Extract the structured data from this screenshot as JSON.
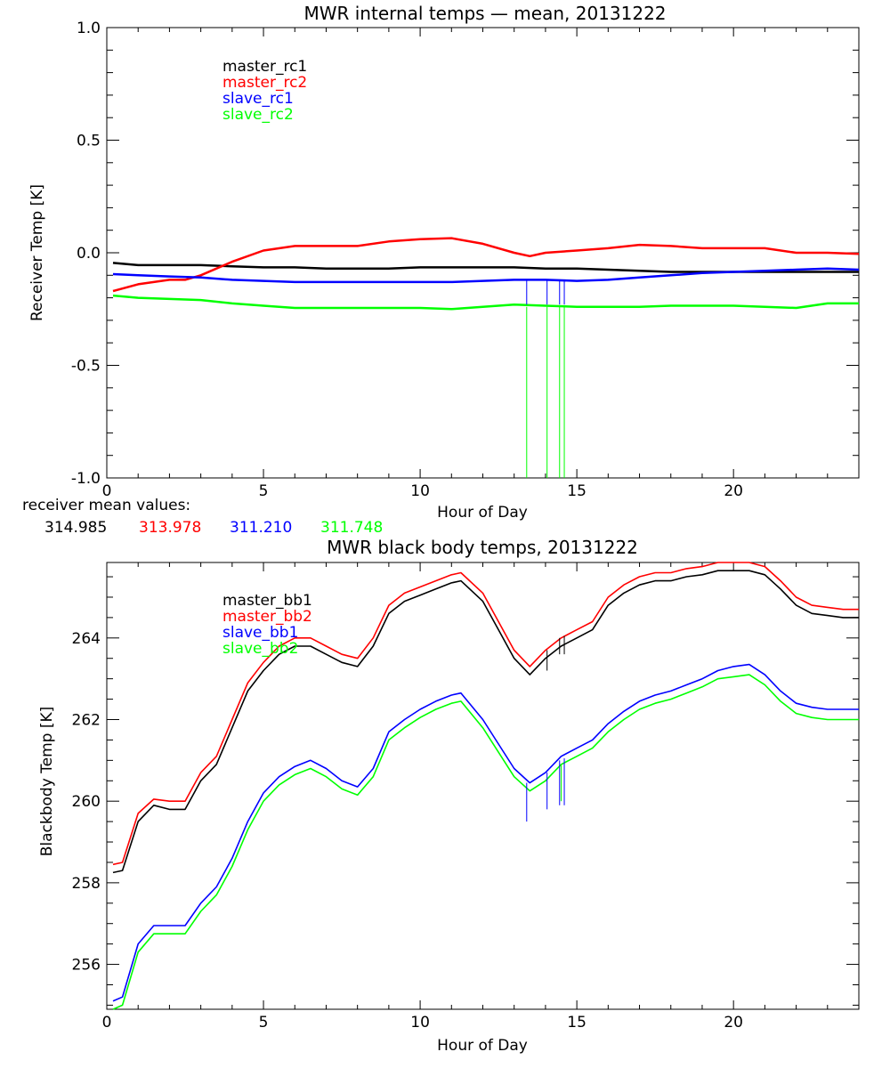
{
  "chart_data": [
    {
      "type": "line",
      "title": "MWR internal temps — mean, 20131222",
      "xlabel": "Hour of Day",
      "ylabel": "Receiver Temp [K]",
      "xlim": [
        0,
        24
      ],
      "ylim": [
        -1.0,
        1.0
      ],
      "xticks": [
        "0",
        "5",
        "10",
        "15",
        "20"
      ],
      "xtick_values": [
        0,
        5,
        10,
        15,
        20
      ],
      "yticks": [
        "1.0",
        "0.5",
        "0.0",
        "-0.5",
        "-1.0"
      ],
      "ytick_values": [
        1.0,
        0.5,
        0.0,
        -0.5,
        -1.0
      ],
      "legend_position": "top-left",
      "series": [
        {
          "name": "master_rc1",
          "color": "#000000",
          "x": [
            0.2,
            1,
            2,
            3,
            4,
            5,
            6,
            7,
            8,
            9,
            10,
            11,
            12,
            13,
            14,
            15,
            16,
            17,
            18,
            19,
            20,
            21,
            22,
            23,
            24
          ],
          "y": [
            -0.045,
            -0.055,
            -0.055,
            -0.055,
            -0.06,
            -0.065,
            -0.065,
            -0.07,
            -0.07,
            -0.07,
            -0.065,
            -0.065,
            -0.065,
            -0.065,
            -0.07,
            -0.07,
            -0.075,
            -0.08,
            -0.085,
            -0.085,
            -0.085,
            -0.085,
            -0.085,
            -0.085,
            -0.085
          ]
        },
        {
          "name": "master_rc2",
          "color": "#ff0000",
          "x": [
            0.2,
            1,
            2,
            2.5,
            3,
            4,
            5,
            6,
            7,
            8,
            9,
            10,
            11,
            12,
            13,
            13.5,
            14,
            15,
            16,
            17,
            18,
            19,
            20,
            21,
            22,
            23,
            24
          ],
          "y": [
            -0.17,
            -0.14,
            -0.12,
            -0.12,
            -0.1,
            -0.04,
            0.01,
            0.03,
            0.03,
            0.03,
            0.05,
            0.06,
            0.065,
            0.04,
            0.0,
            -0.015,
            0.0,
            0.01,
            0.02,
            0.035,
            0.03,
            0.02,
            0.02,
            0.02,
            0.0,
            0.0,
            -0.005
          ]
        },
        {
          "name": "slave_rc1",
          "color": "#0000ff",
          "x": [
            0.2,
            1,
            2,
            3,
            4,
            5,
            6,
            7,
            8,
            9,
            10,
            11,
            12,
            13,
            14,
            15,
            16,
            17,
            18,
            19,
            20,
            21,
            22,
            23,
            24
          ],
          "y": [
            -0.095,
            -0.1,
            -0.105,
            -0.11,
            -0.12,
            -0.125,
            -0.13,
            -0.13,
            -0.13,
            -0.13,
            -0.13,
            -0.13,
            -0.125,
            -0.12,
            -0.12,
            -0.125,
            -0.12,
            -0.11,
            -0.1,
            -0.09,
            -0.085,
            -0.08,
            -0.075,
            -0.07,
            -0.075
          ]
        },
        {
          "name": "slave_rc2",
          "color": "#00ff00",
          "x": [
            0.2,
            1,
            2,
            3,
            4,
            5,
            6,
            7,
            8,
            9,
            10,
            11,
            12,
            13,
            14,
            15,
            16,
            17,
            18,
            19,
            20,
            21,
            22,
            23,
            24
          ],
          "y": [
            -0.19,
            -0.2,
            -0.205,
            -0.21,
            -0.225,
            -0.235,
            -0.245,
            -0.245,
            -0.245,
            -0.245,
            -0.245,
            -0.25,
            -0.24,
            -0.23,
            -0.235,
            -0.24,
            -0.24,
            -0.24,
            -0.235,
            -0.235,
            -0.235,
            -0.24,
            -0.245,
            -0.225,
            -0.225
          ]
        }
      ],
      "spikes": [
        {
          "color": "#00ff00",
          "x": 13.4,
          "y_from": -0.24,
          "y_to": -1.0
        },
        {
          "color": "#00ff00",
          "x": 14.05,
          "y_from": -0.24,
          "y_to": -1.0
        },
        {
          "color": "#00ff00",
          "x": 14.45,
          "y_from": -0.24,
          "y_to": -1.0
        },
        {
          "color": "#00ff00",
          "x": 14.6,
          "y_from": -0.24,
          "y_to": -1.0
        },
        {
          "color": "#0000ff",
          "x": 13.4,
          "y_from": -0.12,
          "y_to": -0.23
        },
        {
          "color": "#0000ff",
          "x": 14.05,
          "y_from": -0.12,
          "y_to": -0.23
        },
        {
          "color": "#0000ff",
          "x": 14.45,
          "y_from": -0.12,
          "y_to": -0.23
        },
        {
          "color": "#0000ff",
          "x": 14.6,
          "y_from": -0.12,
          "y_to": -0.23
        }
      ]
    },
    {
      "type": "line",
      "title": "MWR black body temps, 20131222",
      "xlabel": "Hour of Day",
      "ylabel": "Blackbody Temp [K]",
      "xlim": [
        0,
        24
      ],
      "ylim": [
        254.9,
        265.85
      ],
      "xticks": [
        "0",
        "5",
        "10",
        "15",
        "20"
      ],
      "xtick_values": [
        0,
        5,
        10,
        15,
        20
      ],
      "yticks": [
        "264",
        "262",
        "260",
        "258",
        "256"
      ],
      "ytick_values": [
        264,
        262,
        260,
        258,
        256
      ],
      "legend_position": "top-left",
      "series": [
        {
          "name": "master_bb1",
          "color": "#000000",
          "x": [
            0.2,
            0.5,
            1.0,
            1.5,
            2.0,
            2.5,
            3.0,
            3.5,
            4.0,
            4.5,
            5.0,
            5.5,
            6.0,
            6.5,
            7.0,
            7.5,
            8.0,
            8.5,
            9.0,
            9.5,
            10.0,
            10.5,
            11.0,
            11.3,
            12.0,
            12.5,
            13.0,
            13.5,
            14.0,
            14.5,
            15.0,
            15.5,
            16.0,
            16.5,
            17.0,
            17.5,
            18.0,
            18.5,
            19.0,
            19.5,
            20.0,
            20.5,
            21.0,
            21.5,
            22.0,
            22.5,
            23.0,
            23.5,
            24.0
          ],
          "y": [
            258.25,
            258.3,
            259.5,
            259.9,
            259.8,
            259.8,
            260.5,
            260.9,
            261.8,
            262.7,
            263.2,
            263.6,
            263.8,
            263.8,
            263.6,
            263.4,
            263.3,
            263.8,
            264.6,
            264.9,
            265.05,
            265.2,
            265.35,
            265.4,
            264.9,
            264.2,
            263.5,
            263.1,
            263.5,
            263.8,
            264.0,
            264.2,
            264.8,
            265.1,
            265.3,
            265.4,
            265.4,
            265.5,
            265.55,
            265.65,
            265.65,
            265.65,
            265.55,
            265.2,
            264.8,
            264.6,
            264.55,
            264.5,
            264.5
          ]
        },
        {
          "name": "master_bb2",
          "color": "#ff0000",
          "x": [
            0.2,
            0.5,
            1.0,
            1.5,
            2.0,
            2.5,
            3.0,
            3.5,
            4.0,
            4.5,
            5.0,
            5.5,
            6.0,
            6.5,
            7.0,
            7.5,
            8.0,
            8.5,
            9.0,
            9.5,
            10.0,
            10.5,
            11.0,
            11.3,
            12.0,
            12.5,
            13.0,
            13.5,
            14.0,
            14.5,
            15.0,
            15.5,
            16.0,
            16.5,
            17.0,
            17.5,
            18.0,
            18.5,
            19.0,
            19.5,
            20.0,
            20.5,
            21.0,
            21.5,
            22.0,
            22.5,
            23.0,
            23.5,
            24.0
          ],
          "y": [
            258.45,
            258.5,
            259.7,
            260.05,
            260.0,
            260.0,
            260.7,
            261.1,
            262.0,
            262.9,
            263.4,
            263.8,
            264.0,
            264.0,
            263.8,
            263.6,
            263.5,
            264.0,
            264.8,
            265.1,
            265.25,
            265.4,
            265.55,
            265.6,
            265.1,
            264.4,
            263.7,
            263.3,
            263.7,
            264.0,
            264.2,
            264.4,
            265.0,
            265.3,
            265.5,
            265.6,
            265.6,
            265.7,
            265.75,
            265.85,
            265.85,
            265.85,
            265.75,
            265.4,
            265.0,
            264.8,
            264.75,
            264.7,
            264.7
          ]
        },
        {
          "name": "slave_bb1",
          "color": "#0000ff",
          "x": [
            0.2,
            0.5,
            1.0,
            1.5,
            2.0,
            2.5,
            3.0,
            3.5,
            4.0,
            4.5,
            5.0,
            5.5,
            6.0,
            6.5,
            7.0,
            7.5,
            8.0,
            8.5,
            9.0,
            9.5,
            10.0,
            10.5,
            11.0,
            11.3,
            12.0,
            12.5,
            13.0,
            13.5,
            14.0,
            14.5,
            15.0,
            15.5,
            16.0,
            16.5,
            17.0,
            17.5,
            18.0,
            18.5,
            19.0,
            19.5,
            20.0,
            20.5,
            21.0,
            21.5,
            22.0,
            22.5,
            23.0,
            23.5,
            24.0
          ],
          "y": [
            255.1,
            255.2,
            256.5,
            256.95,
            256.95,
            256.95,
            257.5,
            257.9,
            258.6,
            259.5,
            260.2,
            260.6,
            260.85,
            261.0,
            260.8,
            260.5,
            260.35,
            260.8,
            261.7,
            262.0,
            262.25,
            262.45,
            262.6,
            262.65,
            262.0,
            261.4,
            260.8,
            260.45,
            260.7,
            261.1,
            261.3,
            261.5,
            261.9,
            262.2,
            262.45,
            262.6,
            262.7,
            262.85,
            263.0,
            263.2,
            263.3,
            263.35,
            263.1,
            262.7,
            262.4,
            262.3,
            262.25,
            262.25,
            262.25
          ]
        },
        {
          "name": "slave_bb2",
          "color": "#00ff00",
          "x": [
            0.2,
            0.5,
            1.0,
            1.5,
            2.0,
            2.5,
            3.0,
            3.5,
            4.0,
            4.5,
            5.0,
            5.5,
            6.0,
            6.5,
            7.0,
            7.5,
            8.0,
            8.5,
            9.0,
            9.5,
            10.0,
            10.5,
            11.0,
            11.3,
            12.0,
            12.5,
            13.0,
            13.5,
            14.0,
            14.5,
            15.0,
            15.5,
            16.0,
            16.5,
            17.0,
            17.5,
            18.0,
            18.5,
            19.0,
            19.5,
            20.0,
            20.5,
            21.0,
            21.5,
            22.0,
            22.5,
            23.0,
            23.5,
            24.0
          ],
          "y": [
            254.9,
            255.0,
            256.3,
            256.75,
            256.75,
            256.75,
            257.3,
            257.7,
            258.4,
            259.3,
            260.0,
            260.4,
            260.65,
            260.8,
            260.6,
            260.3,
            260.15,
            260.6,
            261.5,
            261.8,
            262.05,
            262.25,
            262.4,
            262.45,
            261.8,
            261.2,
            260.6,
            260.25,
            260.5,
            260.9,
            261.1,
            261.3,
            261.7,
            262.0,
            262.25,
            262.4,
            262.5,
            262.65,
            262.8,
            263.0,
            263.05,
            263.1,
            262.85,
            262.45,
            262.15,
            262.05,
            262.0,
            262.0,
            262.0
          ]
        }
      ],
      "spikes": [
        {
          "color": "#0000ff",
          "x": 13.4,
          "y_from": 260.45,
          "y_to": 259.5
        },
        {
          "color": "#0000ff",
          "x": 14.05,
          "y_from": 260.7,
          "y_to": 259.8
        },
        {
          "color": "#0000ff",
          "x": 14.45,
          "y_from": 261.0,
          "y_to": 259.9
        },
        {
          "color": "#0000ff",
          "x": 14.6,
          "y_from": 261.05,
          "y_to": 259.9
        },
        {
          "color": "#00ff00",
          "x": 14.5,
          "y_from": 260.9,
          "y_to": 260.0
        },
        {
          "color": "#000000",
          "x": 14.05,
          "y_from": 263.7,
          "y_to": 263.2
        },
        {
          "color": "#000000",
          "x": 14.45,
          "y_from": 264.0,
          "y_to": 263.6
        },
        {
          "color": "#000000",
          "x": 14.6,
          "y_from": 264.05,
          "y_to": 263.6
        }
      ]
    }
  ],
  "receiver_means": {
    "label": "receiver mean values:",
    "values": [
      {
        "text": "314.985",
        "color": "#000000"
      },
      {
        "text": "313.978",
        "color": "#ff0000"
      },
      {
        "text": "311.210",
        "color": "#0000ff"
      },
      {
        "text": "311.748",
        "color": "#00ff00"
      }
    ]
  }
}
